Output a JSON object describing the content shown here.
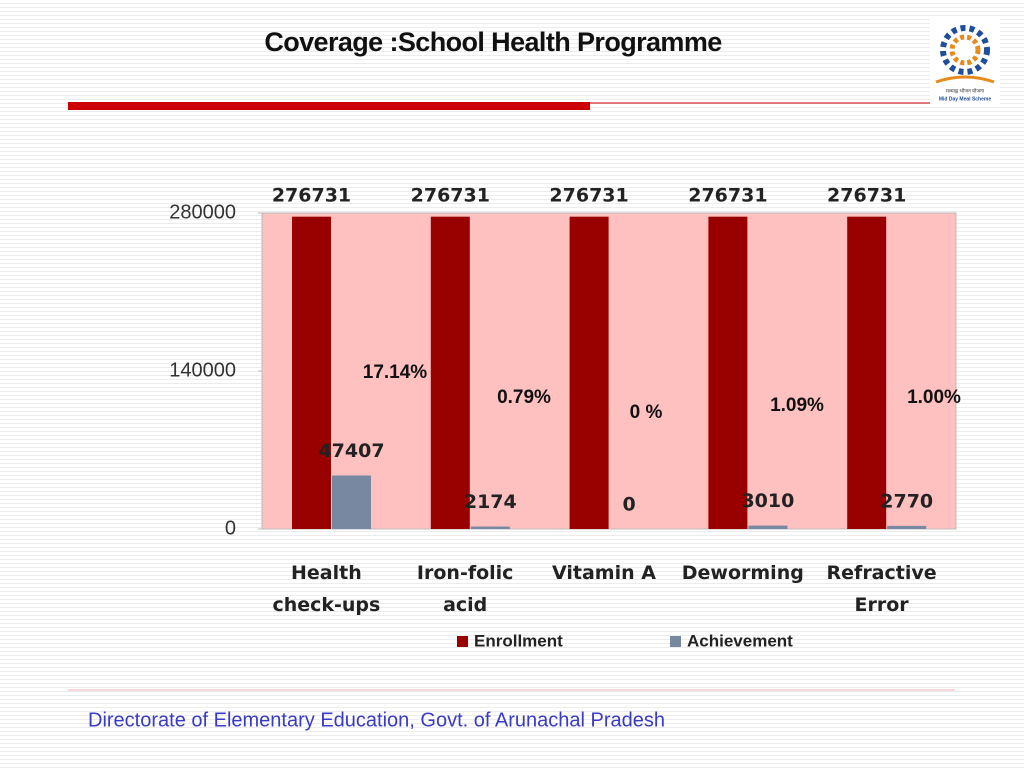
{
  "header": {
    "title": "Coverage :School Health Programme",
    "logo_text": "Mid Day Meal Scheme",
    "logo_hindi": "मध्याह्न भोजन योजना"
  },
  "chart_data": {
    "type": "bar",
    "categories": [
      "Health check-ups",
      "Iron-folic acid",
      "Vitamin A",
      "Deworming",
      "Refractive Error"
    ],
    "series": [
      {
        "name": "Enrollment",
        "color": "#990000",
        "values": [
          276731,
          276731,
          276731,
          276731,
          276731
        ]
      },
      {
        "name": "Achievement",
        "color": "#7788a0",
        "values": [
          47407,
          2174,
          0,
          3010,
          2770
        ]
      }
    ],
    "annotations": [
      "17.14%",
      "0.79%",
      "0 %",
      "1.09%",
      "1.00%"
    ],
    "ylim": [
      0,
      280000
    ],
    "yticks": [
      0,
      140000,
      280000
    ],
    "grid": false,
    "legend": "bottom",
    "background": "#ffc0c0"
  },
  "footer": {
    "text": "Directorate of Elementary Education, Govt. of Arunachal Pradesh"
  }
}
